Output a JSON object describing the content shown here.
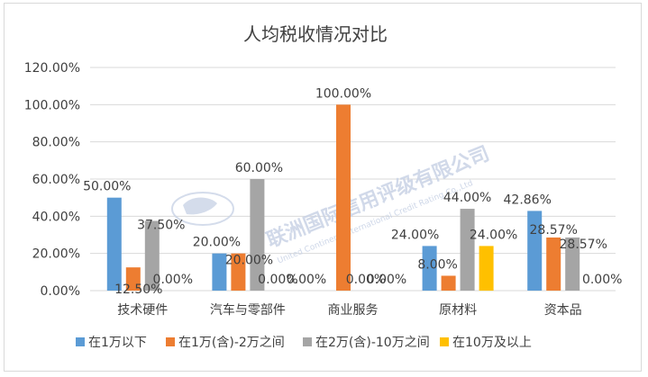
{
  "colors": {
    "series": [
      "#5b9bd5",
      "#ed7d31",
      "#a5a5a5",
      "#ffc000"
    ],
    "grid": "#d9d9d9",
    "text": "#404040"
  },
  "watermark": {
    "text": "联洲国际信用评级有限公司",
    "subtext": "United Continent International Credit Rating Co.,Ltd"
  },
  "chart_data": {
    "type": "bar",
    "title": "人均税收情况对比",
    "categories": [
      "技术硬件",
      "汽车与零部件",
      "商业服务",
      "原材料",
      "资本品"
    ],
    "series": [
      {
        "name": "在1万以下",
        "values": [
          50.0,
          20.0,
          0.0,
          24.0,
          42.86
        ],
        "labels": [
          "50.00%",
          "20.00%",
          "0.00%",
          "24.00%",
          "42.86%"
        ]
      },
      {
        "name": "在1万(含)-2万之间",
        "values": [
          12.5,
          20.0,
          100.0,
          8.0,
          28.57
        ],
        "labels": [
          "12.50%",
          "20.00%",
          "100.00%",
          "8.00%",
          "28.57%"
        ]
      },
      {
        "name": "在2万(含)-10万之间",
        "values": [
          37.5,
          60.0,
          0.0,
          44.0,
          28.57
        ],
        "labels": [
          "37.50%",
          "60.00%",
          "0.00%",
          "44.00%",
          "28.57%"
        ]
      },
      {
        "name": "在10万及以上",
        "values": [
          0.0,
          0.0,
          0.0,
          24.0,
          0.0
        ],
        "labels": [
          "0.00%",
          "0.00%",
          "0.00%",
          "24.00%",
          "0.00%"
        ]
      }
    ],
    "yticks": [
      "0.00%",
      "20.00%",
      "40.00%",
      "60.00%",
      "80.00%",
      "100.00%",
      "120.00%"
    ],
    "ylim": [
      0,
      120
    ],
    "grid": true,
    "legend": "bottom"
  }
}
